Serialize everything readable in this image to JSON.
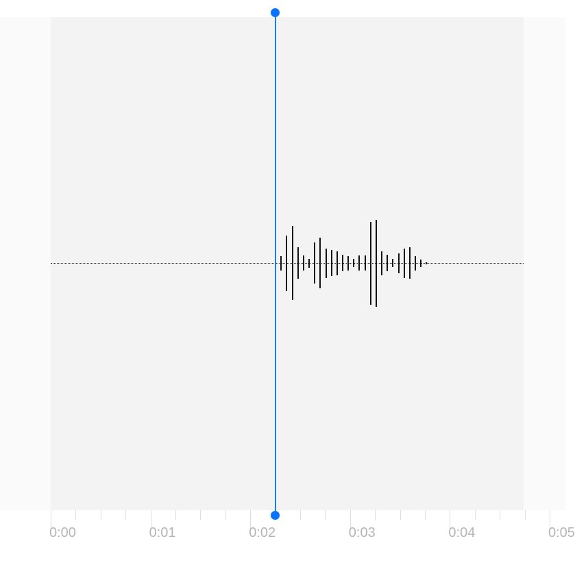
{
  "timeline": {
    "labels": [
      "0:00",
      "0:01",
      "0:02",
      "0:03",
      "0:04",
      "0:05"
    ],
    "seconds_visible": 5,
    "subdivisions_per_second": 4
  },
  "playhead": {
    "position_seconds": 2.25,
    "color": "#0a74ff"
  },
  "waveform": {
    "start_seconds": 2.31,
    "bar_spacing_seconds": 0.056,
    "amplitudes": [
      21,
      81,
      108,
      46,
      22,
      13,
      60,
      74,
      43,
      38,
      35,
      24,
      21,
      12,
      22,
      22,
      121,
      127,
      35,
      24,
      12,
      29,
      43,
      46,
      21,
      11,
      3
    ],
    "amplitude_max": 360,
    "color": "#111111"
  },
  "colors": {
    "track": "#f3f3f3",
    "background": "#fafafa",
    "tick_label": "#b5b5b5"
  }
}
